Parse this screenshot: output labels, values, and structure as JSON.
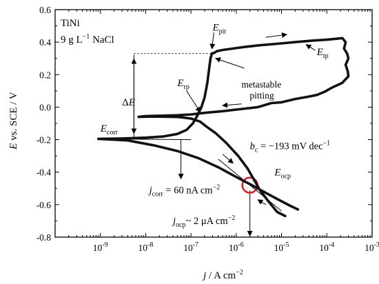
{
  "chart_data": {
    "type": "line",
    "x_scale": "log",
    "xlim": [
      1e-10,
      0.001
    ],
    "ylim": [
      -0.8,
      0.6
    ],
    "grid": false,
    "x_ticks": [
      {
        "value": 1e-09,
        "base": "10",
        "exp": "-9"
      },
      {
        "value": 1e-08,
        "base": "10",
        "exp": "-8"
      },
      {
        "value": 1e-07,
        "base": "10",
        "exp": "-7"
      },
      {
        "value": 1e-06,
        "base": "10",
        "exp": "-6"
      },
      {
        "value": 1e-05,
        "base": "10",
        "exp": "-5"
      },
      {
        "value": 0.0001,
        "base": "10",
        "exp": "-4"
      },
      {
        "value": 0.001,
        "base": "10",
        "exp": "-3"
      }
    ],
    "y_ticks": [
      {
        "value": 0.6,
        "label": "0.6"
      },
      {
        "value": 0.4,
        "label": "0.4"
      },
      {
        "value": 0.2,
        "label": "0.2"
      },
      {
        "value": 0.0,
        "label": "0.0"
      },
      {
        "value": -0.2,
        "label": "-0.2"
      },
      {
        "value": -0.4,
        "label": "-0.4"
      },
      {
        "value": -0.6,
        "label": "-0.6"
      },
      {
        "value": -0.8,
        "label": "-0.8"
      }
    ],
    "xlabel": {
      "italic": "j",
      "rest": " / A cm",
      "sup": "−2"
    },
    "ylabel": {
      "italic": "E",
      "rest": " vs. SCE / V"
    },
    "series": [
      {
        "points": [
          [
            2.3e-05,
            -0.63
          ],
          [
            1.5e-05,
            -0.605
          ],
          [
            8e-06,
            -0.565
          ],
          [
            4e-06,
            -0.52
          ],
          [
            2.2e-06,
            -0.48
          ],
          [
            1e-06,
            -0.43
          ],
          [
            4e-07,
            -0.37
          ],
          [
            1.5e-07,
            -0.315
          ],
          [
            5e-08,
            -0.27
          ],
          [
            1.5e-08,
            -0.235
          ],
          [
            4e-09,
            -0.205
          ],
          [
            9e-10,
            -0.195
          ],
          [
            3e-09,
            -0.193
          ],
          [
            1e-08,
            -0.188
          ],
          [
            2.5e-08,
            -0.18
          ],
          [
            5e-08,
            -0.165
          ],
          [
            8e-08,
            -0.14
          ],
          [
            1.1e-07,
            -0.1
          ],
          [
            1.4e-07,
            -0.05
          ],
          [
            1.7e-07,
            0.0
          ],
          [
            2e-07,
            0.06
          ],
          [
            2.3e-07,
            0.15
          ],
          [
            2.5e-07,
            0.23
          ],
          [
            2.7e-07,
            0.3
          ],
          [
            2.9e-07,
            0.33
          ],
          [
            3.3e-07,
            0.335
          ],
          [
            3.8e-07,
            0.345
          ],
          [
            5e-07,
            0.352
          ],
          [
            8e-07,
            0.36
          ],
          [
            1.5e-06,
            0.37
          ],
          [
            3e-06,
            0.38
          ],
          [
            8e-06,
            0.39
          ],
          [
            2e-05,
            0.4
          ],
          [
            5e-05,
            0.41
          ],
          [
            0.0001,
            0.415
          ],
          [
            0.00015,
            0.42
          ],
          [
            0.00022,
            0.425
          ],
          [
            0.00026,
            0.4
          ],
          [
            0.00024,
            0.36
          ],
          [
            0.00028,
            0.33
          ],
          [
            0.0003,
            0.3
          ],
          [
            0.00026,
            0.26
          ],
          [
            0.00029,
            0.22
          ],
          [
            0.0003,
            0.19
          ],
          [
            0.00022,
            0.15
          ],
          [
            0.00013,
            0.12
          ],
          [
            9e-05,
            0.095
          ],
          [
            6e-05,
            0.075
          ],
          [
            4e-05,
            0.065
          ],
          [
            2e-05,
            0.05
          ],
          [
            1e-05,
            0.03
          ],
          [
            6e-06,
            0.025
          ],
          [
            3e-06,
            0.0
          ],
          [
            1e-06,
            -0.015
          ],
          [
            5e-07,
            -0.025
          ],
          [
            2e-07,
            -0.035
          ],
          [
            1e-07,
            -0.045
          ],
          [
            5e-08,
            -0.05
          ],
          [
            1e-08,
            -0.055
          ],
          [
            7e-09,
            -0.06
          ],
          [
            1.5e-08,
            -0.058
          ],
          [
            5e-08,
            -0.06
          ],
          [
            1e-07,
            -0.07
          ],
          [
            1.6e-07,
            -0.09
          ],
          [
            2.2e-07,
            -0.12
          ],
          [
            3.5e-07,
            -0.16
          ],
          [
            6e-07,
            -0.22
          ],
          [
            1.1e-06,
            -0.3
          ],
          [
            1.8e-06,
            -0.38
          ],
          [
            2.5e-06,
            -0.45
          ],
          [
            3.5e-06,
            -0.52
          ],
          [
            5.5e-06,
            -0.59
          ],
          [
            8e-06,
            -0.645
          ],
          [
            1.2e-05,
            -0.67
          ]
        ]
      }
    ],
    "annotations": {
      "material": "TiNi",
      "concentration": {
        "pre": "9 g L",
        "sup": "−1",
        "post": " NaCl"
      },
      "e_pit": {
        "italic": "E",
        "sub": "pit",
        "x": 3e-07,
        "y": 0.47
      },
      "e_tp": {
        "italic": "E",
        "sub": "tp",
        "x": 6e-05,
        "y": 0.32
      },
      "e_rp": {
        "italic": "E",
        "sub": "rp",
        "x": 5e-08,
        "y": 0.13
      },
      "e_corr": {
        "italic": "E",
        "sub": "corr",
        "x": 1e-09,
        "y": -0.15
      },
      "e_ocp": {
        "italic": "E",
        "sub": "ocp",
        "x": 7e-06,
        "y": -0.42
      },
      "delta_e": {
        "symbol": "Δ",
        "italic": "E",
        "x": 3e-09,
        "y": 0.01
      },
      "metastable": {
        "line1": "metastable",
        "line2": "pitting",
        "x": 1.3e-06,
        "y": 0.12
      },
      "tafel": {
        "italic": "b",
        "sub": "c",
        "rest": " = −193 mV dec",
        "sup": "−1",
        "x": 2e-06,
        "y": -0.26
      },
      "j_corr": {
        "italic": "j",
        "sub": "corr",
        "rest": " = 60 nA cm",
        "sup": "−2",
        "x": 1.2e-08,
        "y": -0.53
      },
      "j_ocp": {
        "italic": "j",
        "sub": "ocp",
        "rest": "~ 2 μA cm",
        "sup": "−2",
        "x": 4e-08,
        "y": -0.72
      }
    },
    "guides": {
      "e_pit_level": 0.33,
      "e_corr_level": -0.195,
      "delta_e_x": 5.5e-09,
      "ocp_point": [
        2e-06,
        -0.48
      ],
      "tafel_line": [
        [
          4e-09,
          -0.197
        ],
        [
          1e-07,
          -0.2
        ]
      ],
      "j_corr_x": 6e-08
    }
  }
}
